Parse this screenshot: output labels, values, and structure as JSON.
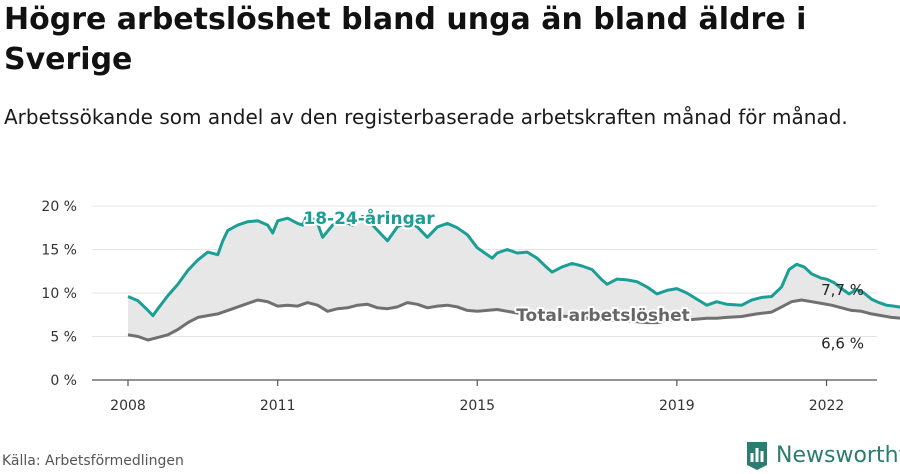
{
  "title": "Högre arbetslöshet bland unga än bland äldre i Sverige",
  "subtitle": "Arbetssökande som andel av den registerbaserade arbetskraften månad för månad.",
  "source": "Källa: Arbetsförmedlingen",
  "brand": {
    "name": "Newsworthy",
    "icon": "newsworthy-logo-icon"
  },
  "colors": {
    "youth": "#1a9e96",
    "total": "#707070",
    "fill": "#e7e7e7",
    "grid": "#e4e4e4",
    "brand": "#2a7d6f"
  },
  "chart_data": {
    "type": "line",
    "xlabel": "",
    "ylabel": "",
    "x_range": [
      2008.0,
      2022.33
    ],
    "ylim": [
      0,
      20
    ],
    "y_ticks": [
      0,
      5,
      10,
      15,
      20
    ],
    "y_tick_labels": [
      "0 %",
      "5 %",
      "10 %",
      "15 %",
      "20 %"
    ],
    "x_ticks": [
      2008,
      2011,
      2015,
      2019,
      2022
    ],
    "x_tick_labels": [
      "2008",
      "2011",
      "2015",
      "2019",
      "2022"
    ],
    "grid": true,
    "area_between_series": true,
    "series": [
      {
        "name": "18-24-åringar",
        "label_text": "18-24-åringar",
        "end_label": "7,7 %",
        "points": [
          [
            2008.0,
            9.6
          ],
          [
            2008.2,
            9.1
          ],
          [
            2008.4,
            8.0
          ],
          [
            2008.5,
            7.4
          ],
          [
            2008.6,
            8.2
          ],
          [
            2008.8,
            9.7
          ],
          [
            2009.0,
            11.0
          ],
          [
            2009.2,
            12.6
          ],
          [
            2009.4,
            13.8
          ],
          [
            2009.6,
            14.7
          ],
          [
            2009.8,
            14.4
          ],
          [
            2009.9,
            16.0
          ],
          [
            2010.0,
            17.2
          ],
          [
            2010.2,
            17.8
          ],
          [
            2010.4,
            18.2
          ],
          [
            2010.6,
            18.3
          ],
          [
            2010.8,
            17.8
          ],
          [
            2010.9,
            16.9
          ],
          [
            2011.0,
            18.3
          ],
          [
            2011.2,
            18.6
          ],
          [
            2011.4,
            18.0
          ],
          [
            2011.5,
            17.8
          ],
          [
            2011.6,
            19.1
          ],
          [
            2011.8,
            18.0
          ],
          [
            2011.9,
            16.4
          ],
          [
            2012.1,
            17.8
          ],
          [
            2012.3,
            18.3
          ],
          [
            2012.5,
            17.8
          ],
          [
            2012.7,
            18.8
          ],
          [
            2012.9,
            17.8
          ],
          [
            2013.2,
            16.0
          ],
          [
            2013.4,
            17.6
          ],
          [
            2013.6,
            18.2
          ],
          [
            2013.8,
            17.6
          ],
          [
            2014.0,
            16.4
          ],
          [
            2014.2,
            17.6
          ],
          [
            2014.4,
            18.0
          ],
          [
            2014.6,
            17.5
          ],
          [
            2014.8,
            16.7
          ],
          [
            2015.0,
            15.2
          ],
          [
            2015.3,
            14.0
          ],
          [
            2015.4,
            14.6
          ],
          [
            2015.6,
            15.0
          ],
          [
            2015.8,
            14.6
          ],
          [
            2016.0,
            14.7
          ],
          [
            2016.2,
            14.0
          ],
          [
            2016.4,
            12.9
          ],
          [
            2016.5,
            12.4
          ],
          [
            2016.7,
            13.0
          ],
          [
            2016.9,
            13.4
          ],
          [
            2017.1,
            13.1
          ],
          [
            2017.3,
            12.7
          ],
          [
            2017.5,
            11.5
          ],
          [
            2017.6,
            11.0
          ],
          [
            2017.8,
            11.6
          ],
          [
            2018.0,
            11.5
          ],
          [
            2018.2,
            11.3
          ],
          [
            2018.4,
            10.7
          ],
          [
            2018.6,
            9.9
          ],
          [
            2018.8,
            10.3
          ],
          [
            2019.0,
            10.5
          ],
          [
            2019.2,
            10.0
          ],
          [
            2019.4,
            9.3
          ],
          [
            2019.6,
            8.6
          ],
          [
            2019.8,
            9.0
          ],
          [
            2020.0,
            8.7
          ],
          [
            2020.3,
            8.6
          ],
          [
            2020.5,
            9.2
          ],
          [
            2020.7,
            9.5
          ],
          [
            2020.9,
            9.6
          ],
          [
            2021.1,
            10.7
          ],
          [
            2021.25,
            12.7
          ],
          [
            2021.4,
            13.3
          ],
          [
            2021.55,
            13.0
          ],
          [
            2021.7,
            12.2
          ],
          [
            2021.9,
            11.7
          ],
          [
            2022.0,
            11.6
          ],
          [
            2022.15,
            11.2
          ],
          [
            2022.3,
            10.5
          ],
          [
            2022.45,
            9.9
          ],
          [
            2022.6,
            10.4
          ],
          [
            2022.75,
            10.0
          ],
          [
            2022.9,
            9.3
          ],
          [
            2023.05,
            8.9
          ],
          [
            2023.2,
            8.6
          ],
          [
            2023.35,
            8.5
          ],
          [
            2023.55,
            8.3
          ],
          [
            2023.7,
            7.7
          ]
        ]
      },
      {
        "name": "Total arbetslöshet",
        "label_text": "Total arbetslöshet",
        "end_label": "6,6 %",
        "points": [
          [
            2008.0,
            5.2
          ],
          [
            2008.2,
            5.0
          ],
          [
            2008.4,
            4.6
          ],
          [
            2008.6,
            4.9
          ],
          [
            2008.8,
            5.2
          ],
          [
            2009.0,
            5.8
          ],
          [
            2009.2,
            6.6
          ],
          [
            2009.4,
            7.2
          ],
          [
            2009.6,
            7.4
          ],
          [
            2009.8,
            7.6
          ],
          [
            2010.0,
            8.0
          ],
          [
            2010.2,
            8.4
          ],
          [
            2010.4,
            8.8
          ],
          [
            2010.6,
            9.2
          ],
          [
            2010.8,
            9.0
          ],
          [
            2011.0,
            8.5
          ],
          [
            2011.2,
            8.6
          ],
          [
            2011.4,
            8.5
          ],
          [
            2011.6,
            8.9
          ],
          [
            2011.8,
            8.6
          ],
          [
            2012.0,
            7.9
          ],
          [
            2012.2,
            8.2
          ],
          [
            2012.4,
            8.3
          ],
          [
            2012.6,
            8.6
          ],
          [
            2012.8,
            8.7
          ],
          [
            2013.0,
            8.3
          ],
          [
            2013.2,
            8.2
          ],
          [
            2013.4,
            8.4
          ],
          [
            2013.6,
            8.9
          ],
          [
            2013.8,
            8.7
          ],
          [
            2014.0,
            8.3
          ],
          [
            2014.2,
            8.5
          ],
          [
            2014.4,
            8.6
          ],
          [
            2014.6,
            8.4
          ],
          [
            2014.8,
            8.0
          ],
          [
            2015.0,
            7.9
          ],
          [
            2015.2,
            8.0
          ],
          [
            2015.4,
            8.1
          ],
          [
            2015.6,
            7.9
          ],
          [
            2015.8,
            7.7
          ],
          [
            2016.0,
            7.6
          ],
          [
            2016.2,
            7.5
          ],
          [
            2016.4,
            7.6
          ],
          [
            2016.6,
            7.4
          ],
          [
            2016.8,
            7.3
          ],
          [
            2017.0,
            7.2
          ],
          [
            2017.2,
            7.1
          ],
          [
            2017.4,
            7.0
          ],
          [
            2017.6,
            6.8
          ],
          [
            2017.8,
            6.9
          ],
          [
            2018.0,
            6.8
          ],
          [
            2018.2,
            6.7
          ],
          [
            2018.4,
            6.6
          ],
          [
            2018.6,
            6.6
          ],
          [
            2018.8,
            6.8
          ],
          [
            2019.0,
            6.9
          ],
          [
            2019.2,
            6.9
          ],
          [
            2019.4,
            7.0
          ],
          [
            2019.6,
            7.1
          ],
          [
            2019.8,
            7.1
          ],
          [
            2020.0,
            7.2
          ],
          [
            2020.3,
            7.3
          ],
          [
            2020.6,
            7.6
          ],
          [
            2020.9,
            7.8
          ],
          [
            2021.1,
            8.4
          ],
          [
            2021.3,
            9.0
          ],
          [
            2021.5,
            9.2
          ],
          [
            2021.7,
            9.0
          ],
          [
            2021.9,
            8.8
          ],
          [
            2022.1,
            8.6
          ],
          [
            2022.3,
            8.3
          ],
          [
            2022.5,
            8.0
          ],
          [
            2022.7,
            7.9
          ],
          [
            2022.9,
            7.6
          ],
          [
            2023.1,
            7.4
          ],
          [
            2023.3,
            7.2
          ],
          [
            2023.5,
            7.1
          ],
          [
            2023.7,
            6.6
          ]
        ]
      }
    ]
  }
}
